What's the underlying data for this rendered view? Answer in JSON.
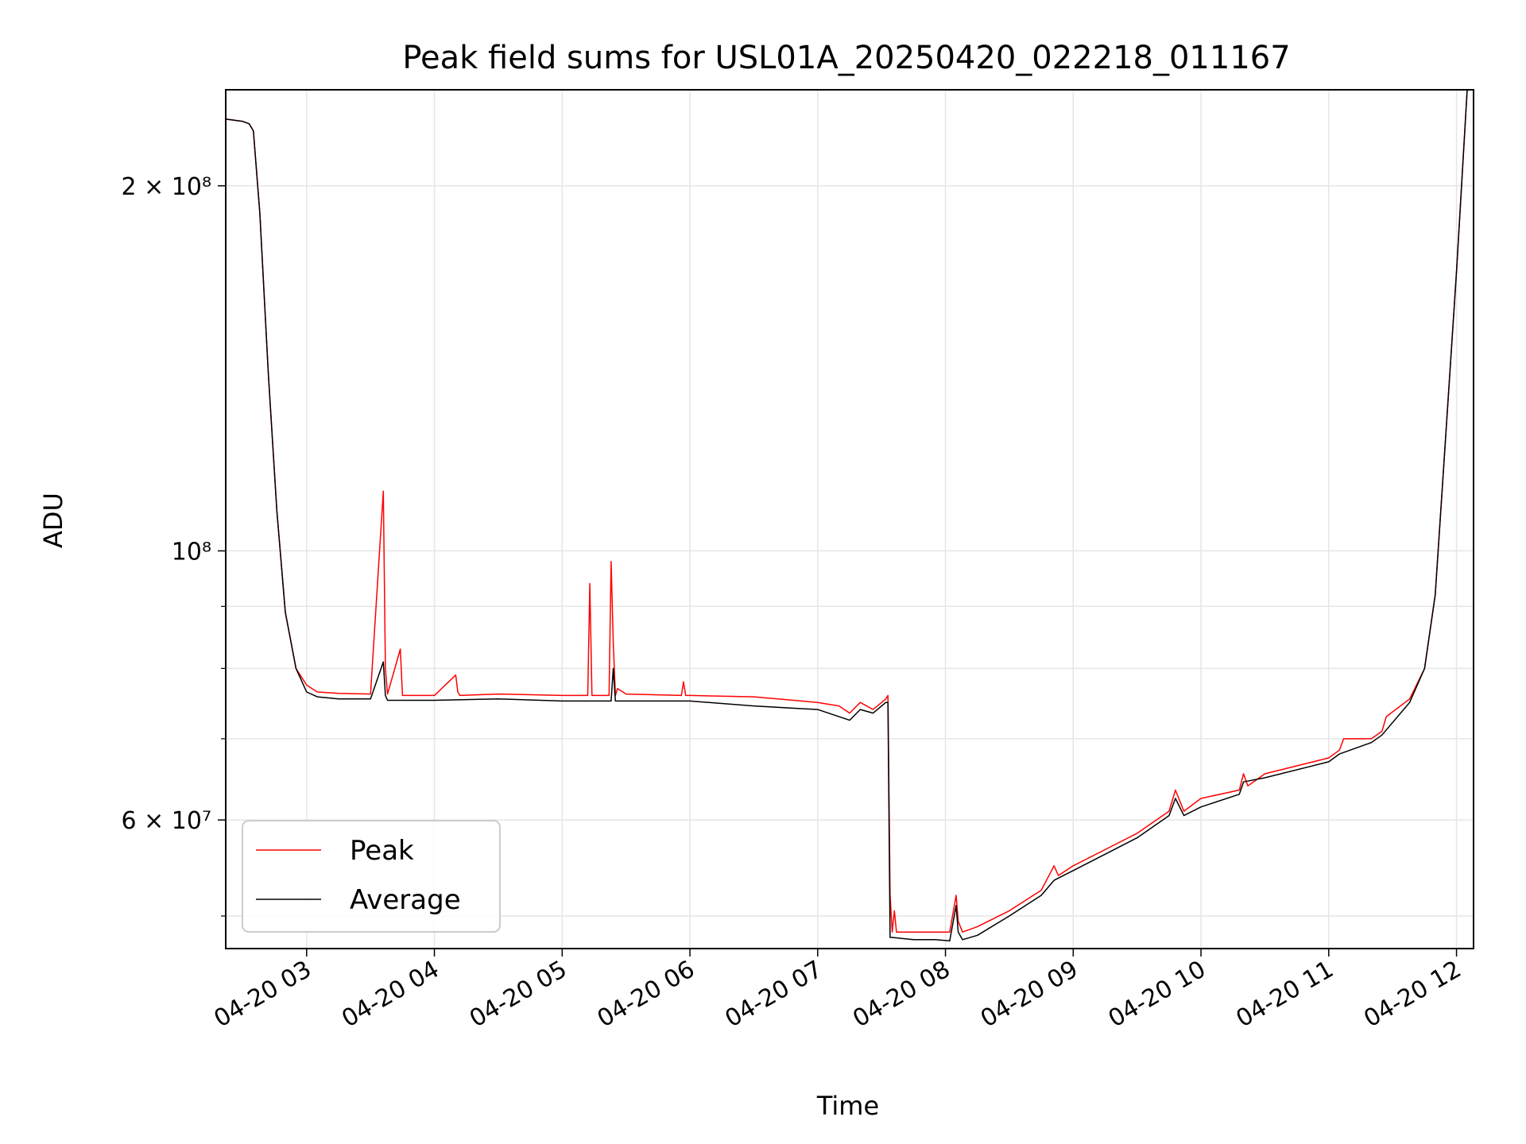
{
  "chart_data": {
    "type": "line",
    "title": "Peak field sums for USL01A_20250420_022218_011167",
    "xlabel": "Time",
    "ylabel": "ADU",
    "yscale": "log",
    "ylim": [
      47000000,
      240000000
    ],
    "xlim": [
      "2025-04-20 02:22",
      "2025-04-20 12:08"
    ],
    "grid": true,
    "legend_position": "lower-left",
    "x_ticks": [
      {
        "t": "2025-04-20 03:00",
        "label": "04-20 03"
      },
      {
        "t": "2025-04-20 04:00",
        "label": "04-20 04"
      },
      {
        "t": "2025-04-20 05:00",
        "label": "04-20 05"
      },
      {
        "t": "2025-04-20 06:00",
        "label": "04-20 06"
      },
      {
        "t": "2025-04-20 07:00",
        "label": "04-20 07"
      },
      {
        "t": "2025-04-20 08:00",
        "label": "04-20 08"
      },
      {
        "t": "2025-04-20 09:00",
        "label": "04-20 09"
      },
      {
        "t": "2025-04-20 10:00",
        "label": "04-20 10"
      },
      {
        "t": "2025-04-20 11:00",
        "label": "04-20 11"
      },
      {
        "t": "2025-04-20 12:00",
        "label": "04-20 12"
      }
    ],
    "y_ticks_major": [
      {
        "v": 60000000,
        "label": "6 × 10⁷"
      },
      {
        "v": 100000000,
        "label": "10⁸"
      },
      {
        "v": 200000000,
        "label": "2 × 10⁸"
      }
    ],
    "y_ticks_minor": [
      50000000,
      70000000,
      80000000,
      90000000
    ],
    "series": [
      {
        "name": "Peak",
        "color": "#ff0000",
        "x": [
          "2025-04-20 02:22",
          "2025-04-20 02:30",
          "2025-04-20 02:33",
          "2025-04-20 02:35",
          "2025-04-20 02:38",
          "2025-04-20 02:42",
          "2025-04-20 02:46",
          "2025-04-20 02:50",
          "2025-04-20 02:55",
          "2025-04-20 03:00",
          "2025-04-20 03:05",
          "2025-04-20 03:15",
          "2025-04-20 03:30",
          "2025-04-20 03:36",
          "2025-04-20 03:37",
          "2025-04-20 03:38",
          "2025-04-20 03:44",
          "2025-04-20 03:45",
          "2025-04-20 03:46",
          "2025-04-20 04:00",
          "2025-04-20 04:10",
          "2025-04-20 04:11",
          "2025-04-20 04:12",
          "2025-04-20 04:30",
          "2025-04-20 05:00",
          "2025-04-20 05:12",
          "2025-04-20 05:13",
          "2025-04-20 05:14",
          "2025-04-20 05:22",
          "2025-04-20 05:23",
          "2025-04-20 05:24",
          "2025-04-20 05:25",
          "2025-04-20 05:26",
          "2025-04-20 05:30",
          "2025-04-20 05:56",
          "2025-04-20 05:57",
          "2025-04-20 05:58",
          "2025-04-20 06:00",
          "2025-04-20 06:30",
          "2025-04-20 07:00",
          "2025-04-20 07:10",
          "2025-04-20 07:15",
          "2025-04-20 07:20",
          "2025-04-20 07:26",
          "2025-04-20 07:32",
          "2025-04-20 07:33",
          "2025-04-20 07:34",
          "2025-04-20 07:35",
          "2025-04-20 07:36",
          "2025-04-20 07:37",
          "2025-04-20 07:45",
          "2025-04-20 07:55",
          "2025-04-20 08:02",
          "2025-04-20 08:05",
          "2025-04-20 08:06",
          "2025-04-20 08:08",
          "2025-04-20 08:15",
          "2025-04-20 08:30",
          "2025-04-20 08:45",
          "2025-04-20 08:51",
          "2025-04-20 08:53",
          "2025-04-20 09:00",
          "2025-04-20 09:30",
          "2025-04-20 09:45",
          "2025-04-20 09:48",
          "2025-04-20 09:52",
          "2025-04-20 10:00",
          "2025-04-20 10:18",
          "2025-04-20 10:20",
          "2025-04-20 10:22",
          "2025-04-20 10:30",
          "2025-04-20 11:00",
          "2025-04-20 11:05",
          "2025-04-20 11:07",
          "2025-04-20 11:20",
          "2025-04-20 11:25",
          "2025-04-20 11:27",
          "2025-04-20 11:38",
          "2025-04-20 11:45",
          "2025-04-20 11:50",
          "2025-04-20 11:55",
          "2025-04-20 12:00",
          "2025-04-20 12:05",
          "2025-04-20 12:08"
        ],
        "y": [
          227000000,
          226000000,
          225000000,
          222000000,
          190000000,
          140000000,
          108000000,
          89000000,
          80000000,
          77500000,
          76500000,
          76300000,
          76200000,
          112000000,
          80000000,
          76200000,
          83000000,
          76000000,
          76000000,
          76000000,
          79000000,
          76500000,
          76000000,
          76200000,
          76000000,
          76000000,
          94000000,
          76000000,
          76000000,
          98000000,
          84000000,
          76000000,
          77000000,
          76200000,
          76000000,
          78000000,
          76000000,
          76000000,
          75800000,
          75000000,
          74500000,
          73500000,
          75000000,
          74000000,
          75500000,
          76000000,
          52000000,
          48500000,
          50500000,
          48500000,
          48500000,
          48500000,
          48500000,
          52000000,
          49500000,
          48500000,
          49000000,
          50500000,
          52500000,
          55000000,
          54000000,
          55000000,
          58500000,
          61000000,
          63500000,
          61000000,
          62500000,
          63500000,
          65500000,
          64000000,
          65500000,
          67500000,
          68500000,
          70000000,
          70000000,
          71000000,
          73000000,
          75500000,
          80000000,
          92000000,
          125000000,
          170000000,
          240000000,
          240000000
        ]
      },
      {
        "name": "Average",
        "color": "#000000",
        "x": [
          "2025-04-20 02:22",
          "2025-04-20 02:30",
          "2025-04-20 02:33",
          "2025-04-20 02:35",
          "2025-04-20 02:38",
          "2025-04-20 02:42",
          "2025-04-20 02:46",
          "2025-04-20 02:50",
          "2025-04-20 02:55",
          "2025-04-20 03:00",
          "2025-04-20 03:05",
          "2025-04-20 03:15",
          "2025-04-20 03:30",
          "2025-04-20 03:36",
          "2025-04-20 03:37",
          "2025-04-20 03:38",
          "2025-04-20 04:00",
          "2025-04-20 04:30",
          "2025-04-20 05:00",
          "2025-04-20 05:23",
          "2025-04-20 05:24",
          "2025-04-20 05:25",
          "2025-04-20 05:30",
          "2025-04-20 06:00",
          "2025-04-20 06:30",
          "2025-04-20 07:00",
          "2025-04-20 07:10",
          "2025-04-20 07:15",
          "2025-04-20 07:20",
          "2025-04-20 07:26",
          "2025-04-20 07:32",
          "2025-04-20 07:33",
          "2025-04-20 07:34",
          "2025-04-20 07:35",
          "2025-04-20 07:45",
          "2025-04-20 07:55",
          "2025-04-20 08:02",
          "2025-04-20 08:05",
          "2025-04-20 08:06",
          "2025-04-20 08:08",
          "2025-04-20 08:15",
          "2025-04-20 08:30",
          "2025-04-20 08:45",
          "2025-04-20 08:51",
          "2025-04-20 09:00",
          "2025-04-20 09:30",
          "2025-04-20 09:45",
          "2025-04-20 09:48",
          "2025-04-20 09:52",
          "2025-04-20 10:00",
          "2025-04-20 10:18",
          "2025-04-20 10:20",
          "2025-04-20 10:30",
          "2025-04-20 11:00",
          "2025-04-20 11:05",
          "2025-04-20 11:20",
          "2025-04-20 11:25",
          "2025-04-20 11:38",
          "2025-04-20 11:45",
          "2025-04-20 11:50",
          "2025-04-20 11:55",
          "2025-04-20 12:00",
          "2025-04-20 12:05",
          "2025-04-20 12:08"
        ],
        "y": [
          227000000,
          226000000,
          225000000,
          222000000,
          190000000,
          140000000,
          108000000,
          89000000,
          80000000,
          76500000,
          75800000,
          75500000,
          75500000,
          81000000,
          76000000,
          75300000,
          75300000,
          75500000,
          75200000,
          75200000,
          80000000,
          75200000,
          75200000,
          75200000,
          74500000,
          74000000,
          73000000,
          72500000,
          74000000,
          73500000,
          75000000,
          75000000,
          48000000,
          48000000,
          47800000,
          47800000,
          47700000,
          51000000,
          48500000,
          47800000,
          48200000,
          50000000,
          52000000,
          53500000,
          54500000,
          58000000,
          60500000,
          62500000,
          60500000,
          61500000,
          63000000,
          64500000,
          65000000,
          67000000,
          68000000,
          69500000,
          70500000,
          75000000,
          80000000,
          92000000,
          125000000,
          170000000,
          240000000,
          240000000
        ]
      }
    ]
  }
}
